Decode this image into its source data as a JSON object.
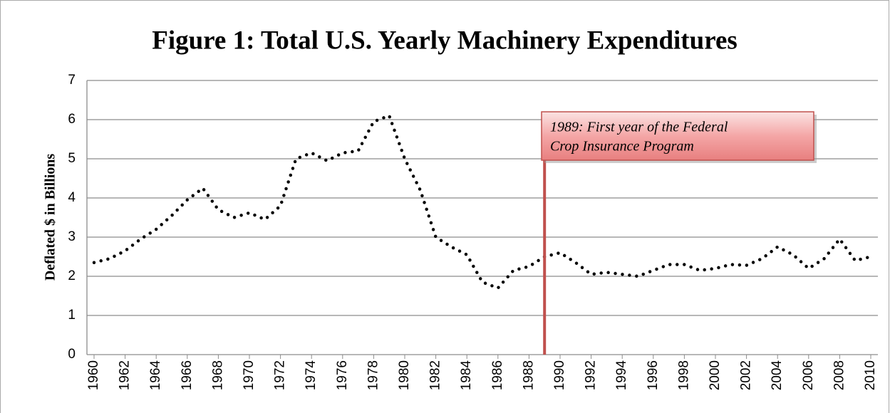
{
  "chart_data": {
    "type": "line",
    "title": "Figure 1: Total U.S. Yearly Machinery Expenditures",
    "y_label": "Deflated $ in Billions",
    "x": [
      1960,
      1961,
      1962,
      1963,
      1964,
      1965,
      1966,
      1967,
      1968,
      1969,
      1970,
      1971,
      1972,
      1973,
      1974,
      1975,
      1976,
      1977,
      1978,
      1979,
      1980,
      1981,
      1982,
      1983,
      1984,
      1985,
      1986,
      1987,
      1988,
      1989,
      1990,
      1991,
      1992,
      1993,
      1994,
      1995,
      1996,
      1997,
      1998,
      1999,
      2000,
      2001,
      2002,
      2003,
      2004,
      2005,
      2006,
      2007,
      2008,
      2009,
      2010
    ],
    "series": [
      {
        "name": "Machinery expenditures",
        "color": "#000000",
        "values": [
          2.35,
          2.45,
          2.65,
          2.95,
          3.2,
          3.55,
          3.95,
          4.25,
          3.7,
          3.5,
          3.62,
          3.45,
          3.8,
          5.0,
          5.15,
          4.95,
          5.15,
          5.2,
          5.95,
          6.1,
          5.0,
          4.2,
          3.0,
          2.75,
          2.55,
          1.85,
          1.7,
          2.15,
          2.25,
          2.5,
          2.6,
          2.35,
          2.05,
          2.1,
          2.05,
          2.0,
          2.15,
          2.3,
          2.3,
          2.15,
          2.2,
          2.3,
          2.28,
          2.45,
          2.75,
          2.55,
          2.2,
          2.45,
          2.95,
          2.4,
          2.5
        ]
      }
    ],
    "xlim": [
      1960,
      2010
    ],
    "xticks": [
      1960,
      1962,
      1964,
      1966,
      1968,
      1970,
      1972,
      1974,
      1976,
      1978,
      1980,
      1982,
      1984,
      1986,
      1988,
      1990,
      1992,
      1994,
      1996,
      1998,
      2000,
      2002,
      2004,
      2006,
      2008,
      2010
    ],
    "ylim": [
      0,
      7
    ],
    "yticks": [
      0,
      1,
      2,
      3,
      4,
      5,
      6,
      7
    ],
    "grid": true,
    "annotation": {
      "x": 1989,
      "color": "#c0504d",
      "text_lines": [
        "1989: First year of the Federal",
        "Crop Insurance Program"
      ]
    }
  }
}
